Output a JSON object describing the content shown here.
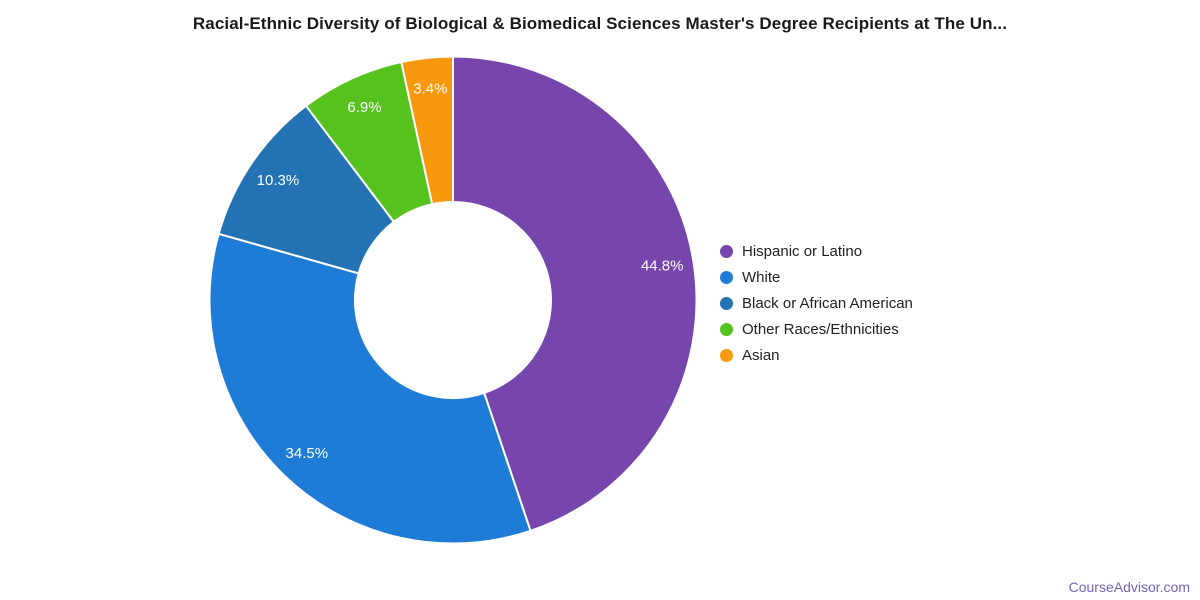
{
  "title": "Racial-Ethnic Diversity of Biological & Biomedical Sciences Master's Degree Recipients at The Un...",
  "footer": {
    "link_text": "CourseAdvisor.com",
    "color": "#7365B2"
  },
  "chart_data": {
    "type": "pie",
    "subtype": "donut",
    "title": "Racial-Ethnic Diversity of Biological & Biomedical Sciences Master's Degree Recipients at The Un...",
    "categories": [
      "Hispanic or Latino",
      "White",
      "Black or African American",
      "Other Races/Ethnicities",
      "Asian"
    ],
    "values": [
      44.8,
      34.5,
      10.3,
      6.9,
      3.4
    ],
    "labels": [
      "44.8%",
      "34.5%",
      "10.3%",
      "6.9%",
      "3.4%"
    ],
    "colors": [
      "#7646AD",
      "#1E7CD6",
      "#2272B4",
      "#56C21E",
      "#F8990D"
    ],
    "legend_position": "right",
    "direction": "clockwise",
    "start_angle_deg": 0,
    "donut_hole_ratio": 0.4,
    "slice_label_color": "#ffffff",
    "slice_border_color": "#ffffff",
    "background_color": "#ffffff"
  }
}
